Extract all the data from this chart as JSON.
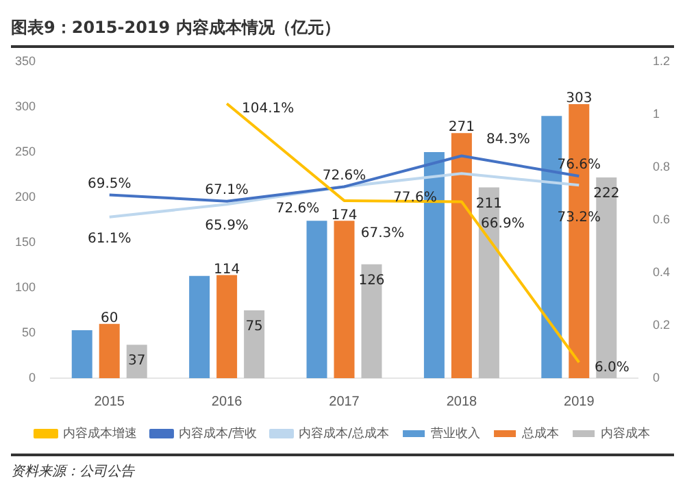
{
  "chart_data": {
    "type": "bar",
    "title": "图表9：2015-2019 内容成本情况（亿元）",
    "categories": [
      "2015",
      "2016",
      "2017",
      "2018",
      "2019"
    ],
    "series": [
      {
        "name": "营业收入",
        "color": "#5b9bd5",
        "values": [
          53,
          113,
          174,
          250,
          290
        ]
      },
      {
        "name": "总成本",
        "color": "#ed7d31",
        "values": [
          60,
          114,
          174,
          271,
          303
        ],
        "value_labels": [
          "60",
          "114",
          "174",
          "271",
          "303"
        ]
      },
      {
        "name": "内容成本",
        "color": "#bfbfbf",
        "values": [
          37,
          75,
          126,
          211,
          222
        ],
        "value_labels": [
          "37",
          "75",
          "126",
          "211",
          "222"
        ]
      },
      {
        "name": "内容成本增速",
        "type": "line",
        "axis": "y2",
        "color": "#ffc000",
        "values": [
          null,
          1.041,
          0.673,
          0.669,
          0.06
        ],
        "value_labels": [
          null,
          "104.1%",
          "67.3%",
          "66.9%",
          "6.0%"
        ]
      },
      {
        "name": "内容成本/营收",
        "type": "line",
        "axis": "y2",
        "color": "#4472c4",
        "values": [
          0.695,
          0.671,
          0.726,
          0.843,
          0.766
        ],
        "value_labels": [
          "69.5%",
          "67.1%",
          "72.6%",
          "84.3%",
          "76.6%"
        ]
      },
      {
        "name": "内容成本/总成本",
        "type": "line",
        "axis": "y2",
        "color": "#bdd7ee",
        "values": [
          0.611,
          0.659,
          0.726,
          0.776,
          0.732
        ],
        "value_labels": [
          "61.1%",
          "65.9%",
          "72.6%",
          "77.6%",
          "73.2%"
        ]
      }
    ],
    "ylim": [
      0,
      350
    ],
    "yticks": [
      0,
      50,
      100,
      150,
      200,
      250,
      300,
      350
    ],
    "y2lim": [
      0,
      1.2
    ],
    "y2ticks": [
      0,
      0.2,
      0.4,
      0.6,
      0.8,
      1,
      1.2
    ],
    "grid": false,
    "legend": "bottom",
    "marker": "none",
    "annotations": [
      "资料来源：公司公告"
    ]
  }
}
